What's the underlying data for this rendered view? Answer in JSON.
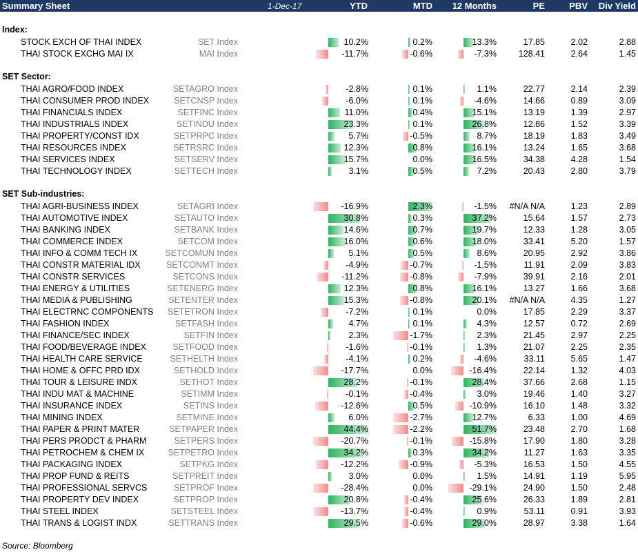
{
  "header": {
    "title": "Summary Sheet",
    "date": "1-Dec-17",
    "columns": [
      "YTD",
      "MTD",
      "12 Months",
      "PE",
      "PBV",
      "Div Yield"
    ]
  },
  "sections": [
    {
      "title": "Index:",
      "rows": [
        {
          "name": "STOCK EXCH OF THAI INDEX",
          "ticker": "SET Index",
          "ytd": "10.2%",
          "mtd": "0.2%",
          "m12": "13.3%",
          "pe": "17.85",
          "pbv": "2.02",
          "dy": "2.88"
        },
        {
          "name": "THAI STOCK EXCHG MAI IX",
          "ticker": "MAI Index",
          "ytd": "-11.7%",
          "mtd": "-0.6%",
          "m12": "-7.3%",
          "pe": "128.41",
          "pbv": "2.64",
          "dy": "1.45"
        }
      ]
    },
    {
      "title": "SET Sector:",
      "rows": [
        {
          "name": "THAI AGRO/FOOD INDEX",
          "ticker": "SETAGRO Index",
          "ytd": "-2.8%",
          "mtd": "0.1%",
          "m12": "1.1%",
          "pe": "22.77",
          "pbv": "2.14",
          "dy": "2.39"
        },
        {
          "name": "THAI CONSUMER PROD INDEX",
          "ticker": "SETCNSP Index",
          "ytd": "-6.0%",
          "mtd": "0.1%",
          "m12": "-4.6%",
          "pe": "14.66",
          "pbv": "0.89",
          "dy": "3.09"
        },
        {
          "name": "THAI FINANCIALS INDEX",
          "ticker": "SETFINC Index",
          "ytd": "11.0%",
          "mtd": "0.4%",
          "m12": "15.1%",
          "pe": "13.19",
          "pbv": "1.39",
          "dy": "2.97"
        },
        {
          "name": "THAI INDUSTRIALS INDEX",
          "ticker": "SETINDU Index",
          "ytd": "23.3%",
          "mtd": "0.1%",
          "m12": "26.8%",
          "pe": "12.86",
          "pbv": "1.52",
          "dy": "3.39"
        },
        {
          "name": "THAI PROPERTY/CONST IDX",
          "ticker": "SETPRPC Index",
          "ytd": "5.7%",
          "mtd": "-0.5%",
          "m12": "8.7%",
          "pe": "18.19",
          "pbv": "1.83",
          "dy": "3.49"
        },
        {
          "name": "THAI RESOURCES INDEX",
          "ticker": "SETRSRC Index",
          "ytd": "12.3%",
          "mtd": "0.8%",
          "m12": "16.1%",
          "pe": "13.24",
          "pbv": "1.65",
          "dy": "3.68"
        },
        {
          "name": "THAI SERVICES INDEX",
          "ticker": "SETSERV Index",
          "ytd": "15.7%",
          "mtd": "0.0%",
          "m12": "16.5%",
          "pe": "34.38",
          "pbv": "4.28",
          "dy": "1.54"
        },
        {
          "name": "THAI TECHNOLOGY INDEX",
          "ticker": "SETTECH Index",
          "ytd": "3.1%",
          "mtd": "0.5%",
          "m12": "7.2%",
          "pe": "20.43",
          "pbv": "2.80",
          "dy": "3.79"
        }
      ]
    },
    {
      "title": "SET Sub-industries:",
      "rows": [
        {
          "name": "THAI AGRI-BUSINESS INDEX",
          "ticker": "SETAGRI Index",
          "ytd": "-16.9%",
          "mtd": "2.3%",
          "m12": "-1.5%",
          "pe": "#N/A N/A",
          "pbv": "1.23",
          "dy": "2.89"
        },
        {
          "name": "THAI AUTOMOTIVE INDEX",
          "ticker": "SETAUTO Index",
          "ytd": "30.8%",
          "mtd": "0.3%",
          "m12": "37.2%",
          "pe": "15.64",
          "pbv": "1.57",
          "dy": "2.73"
        },
        {
          "name": "THAI BANKING INDEX",
          "ticker": "SETBANK Index",
          "ytd": "14.6%",
          "mtd": "0.7%",
          "m12": "19.7%",
          "pe": "12.33",
          "pbv": "1.28",
          "dy": "3.05"
        },
        {
          "name": "THAI COMMERCE INDEX",
          "ticker": "SETCOM Index",
          "ytd": "16.0%",
          "mtd": "0.6%",
          "m12": "18.0%",
          "pe": "33.41",
          "pbv": "5.20",
          "dy": "1.57"
        },
        {
          "name": "THAI INFO & COMM TECH IX",
          "ticker": "SETCOMUN Index",
          "ytd": "5.1%",
          "mtd": "0.5%",
          "m12": "8.6%",
          "pe": "20.95",
          "pbv": "2.92",
          "dy": "3.86"
        },
        {
          "name": "THAI CONSTR MATERIAL IDX",
          "ticker": "SETCONMT Index",
          "ytd": "-4.9%",
          "mtd": "-0.7%",
          "m12": "-1.5%",
          "pe": "11.91",
          "pbv": "2.09",
          "dy": "3.83"
        },
        {
          "name": "THAI CONSTR SERVICES",
          "ticker": "SETCONS Index",
          "ytd": "-11.2%",
          "mtd": "-0.8%",
          "m12": "-7.9%",
          "pe": "39.91",
          "pbv": "2.16",
          "dy": "2.01"
        },
        {
          "name": "THAI ENERGY & UTILITIES",
          "ticker": "SETENERG Index",
          "ytd": "12.3%",
          "mtd": "0.8%",
          "m12": "16.1%",
          "pe": "13.27",
          "pbv": "1.66",
          "dy": "3.68"
        },
        {
          "name": "THAI MEDIA & PUBLISHING",
          "ticker": "SETENTER Index",
          "ytd": "15.3%",
          "mtd": "-0.8%",
          "m12": "20.1%",
          "pe": "#N/A N/A",
          "pbv": "4.35",
          "dy": "1.27"
        },
        {
          "name": "THAI ELECTRNC COMPONENTS",
          "ticker": "SETETRON Index",
          "ytd": "-7.2%",
          "mtd": "0.1%",
          "m12": "0.0%",
          "pe": "17.85",
          "pbv": "2.29",
          "dy": "3.37"
        },
        {
          "name": "THAI FASHION INDEX",
          "ticker": "SETFASH Index",
          "ytd": "4.7%",
          "mtd": "0.1%",
          "m12": "4.3%",
          "pe": "12.57",
          "pbv": "0.72",
          "dy": "2.69"
        },
        {
          "name": "THAI FINANCE/SEC INDEX",
          "ticker": "SETFIN Index",
          "ytd": "2.3%",
          "mtd": "-1.7%",
          "m12": "2.3%",
          "pe": "21.45",
          "pbv": "2.97",
          "dy": "2.25"
        },
        {
          "name": "THAI FOOD/BEVERAGE INDEX",
          "ticker": "SETFOOD Index",
          "ytd": "-1.6%",
          "mtd": "-0.1%",
          "m12": "1.3%",
          "pe": "21.07",
          "pbv": "2.25",
          "dy": "2.35"
        },
        {
          "name": "THAI HEALTH CARE SERVICE",
          "ticker": "SETHELTH Index",
          "ytd": "-4.1%",
          "mtd": "0.2%",
          "m12": "-4.6%",
          "pe": "33.11",
          "pbv": "5.65",
          "dy": "1.47"
        },
        {
          "name": "THAI HOME & OFFC PRD IDX",
          "ticker": "SETHOLD Index",
          "ytd": "-17.7%",
          "mtd": "0.0%",
          "m12": "-16.4%",
          "pe": "22.14",
          "pbv": "1.32",
          "dy": "4.03"
        },
        {
          "name": "THAI TOUR & LEISURE INDX",
          "ticker": "SETHOT Index",
          "ytd": "28.2%",
          "mtd": "-0.1%",
          "m12": "28.4%",
          "pe": "37.66",
          "pbv": "2.68",
          "dy": "1.15"
        },
        {
          "name": "THAI INDU MAT & MACHINE",
          "ticker": "SETIMM Index",
          "ytd": "-0.1%",
          "mtd": "-0.4%",
          "m12": "3.0%",
          "pe": "19.46",
          "pbv": "1.40",
          "dy": "3.27"
        },
        {
          "name": "THAI INSURANCE INDEX",
          "ticker": "SETINS Index",
          "ytd": "-12.6%",
          "mtd": "0.5%",
          "m12": "-10.9%",
          "pe": "16.10",
          "pbv": "1.48",
          "dy": "3.32"
        },
        {
          "name": "THAI MINING INDEX",
          "ticker": "SETMINE Index",
          "ytd": "6.0%",
          "mtd": "-2.7%",
          "m12": "12.7%",
          "pe": "6.33",
          "pbv": "1.00",
          "dy": "4.69"
        },
        {
          "name": "THAI PAPER & PRINT MATER",
          "ticker": "SETPAPER Index",
          "ytd": "44.4%",
          "mtd": "-2.2%",
          "m12": "51.7%",
          "pe": "23.48",
          "pbv": "2.70",
          "dy": "1.68"
        },
        {
          "name": "THAI PERS PRODCT & PHARM",
          "ticker": "SETPERS Index",
          "ytd": "-20.7%",
          "mtd": "-0.1%",
          "m12": "-15.8%",
          "pe": "17.90",
          "pbv": "1.80",
          "dy": "3.28"
        },
        {
          "name": "THAI PETROCHEM & CHEM IX",
          "ticker": "SETPETRO Index",
          "ytd": "34.2%",
          "mtd": "0.3%",
          "m12": "34.2%",
          "pe": "11.27",
          "pbv": "1.63",
          "dy": "3.35"
        },
        {
          "name": "THAI PACKAGING INDEX",
          "ticker": "SETPKG Index",
          "ytd": "-12.2%",
          "mtd": "-0.9%",
          "m12": "-5.3%",
          "pe": "16.53",
          "pbv": "1.50",
          "dy": "4.55"
        },
        {
          "name": "THAI PROP FUND & REITS",
          "ticker": "SETPREIT Index",
          "ytd": "3.0%",
          "mtd": "0.0%",
          "m12": "1.5%",
          "pe": "14.91",
          "pbv": "1.19",
          "dy": "5.95"
        },
        {
          "name": "THAI PROFESSIONAL SERVCS",
          "ticker": "SETPROF Index",
          "ytd": "-28.4%",
          "mtd": "0.0%",
          "m12": "-29.1%",
          "pe": "24.90",
          "pbv": "1.50",
          "dy": "2.48"
        },
        {
          "name": "THAI PROPERTY DEV INDEX",
          "ticker": "SETPROP Index",
          "ytd": "20.8%",
          "mtd": "-0.4%",
          "m12": "25.6%",
          "pe": "26.33",
          "pbv": "1.89",
          "dy": "2.81"
        },
        {
          "name": "THAI STEEL INDEX",
          "ticker": "SETSTEEL Index",
          "ytd": "-13.7%",
          "mtd": "-0.4%",
          "m12": "0.9%",
          "pe": "53.11",
          "pbv": "0.91",
          "dy": "3.93"
        },
        {
          "name": "THAI TRANS & LOGIST INDX",
          "ticker": "SETTRANS Index",
          "ytd": "29.5%",
          "mtd": "-0.6%",
          "m12": "29.0%",
          "pe": "28.97",
          "pbv": "3.38",
          "dy": "1.64"
        }
      ]
    }
  ],
  "source": "Source: Bloomberg",
  "colors": {
    "header_bg": "#1f3864",
    "positive_bar": "#2eb35f",
    "negative_bar": "#f08a8a",
    "ticker_text": "#808080"
  }
}
